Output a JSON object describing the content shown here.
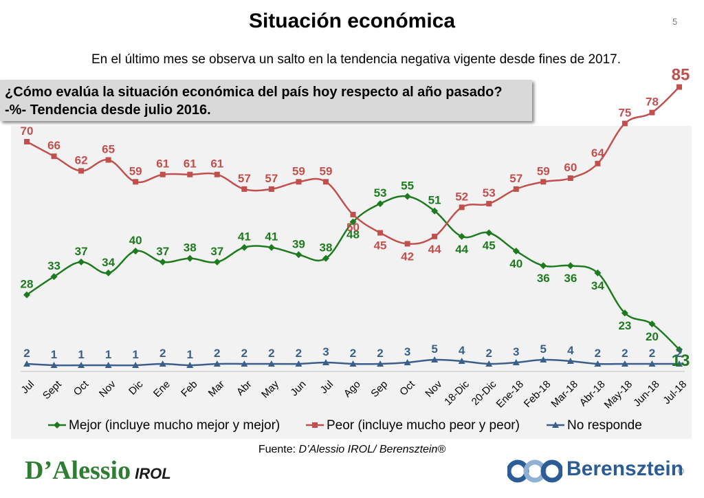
{
  "header": {
    "title": "Situación económica",
    "page_number": "5",
    "subtitle": "En el último mes se observa un salto en la tendencia negativa vigente desde fines de 2017."
  },
  "question": {
    "line1": "¿Cómo evalúa la situación económica del país hoy respecto al año pasado?",
    "line2": "-%- Tendencia desde julio 2016."
  },
  "chart_data": {
    "type": "line",
    "categories": [
      "Jul",
      "Sept",
      "Oct",
      "Nov",
      "Dic",
      "Ene",
      "Feb",
      "Mar",
      "Abr",
      "May",
      "Jun",
      "Jul",
      "Ago",
      "Sep",
      "Oct",
      "Nov",
      "18-Dic",
      "20-Dic",
      "Ene-18",
      "Feb-18",
      "Mar-18",
      "Abr-18",
      "May-18",
      "Jun-18",
      "Jul-18"
    ],
    "ylim": [
      0,
      90
    ],
    "legend_position": "bottom",
    "series": [
      {
        "name": "Mejor (incluye mucho mejor y mejor)",
        "color": "#1e7a1e",
        "marker": "diamond",
        "values": [
          28,
          33,
          37,
          34,
          40,
          37,
          38,
          37,
          41,
          41,
          39,
          38,
          48,
          53,
          55,
          51,
          44,
          45,
          40,
          36,
          36,
          34,
          23,
          20,
          13
        ]
      },
      {
        "name": "Peor (incluye mucho peor y peor)",
        "color": "#c0504d",
        "marker": "square",
        "values": [
          70,
          66,
          62,
          65,
          59,
          61,
          61,
          61,
          57,
          57,
          59,
          59,
          50,
          45,
          42,
          44,
          52,
          53,
          57,
          59,
          60,
          64,
          75,
          78,
          85
        ]
      },
      {
        "name": "No responde",
        "color": "#3b5f8a",
        "marker": "triangle",
        "values": [
          2,
          1,
          1,
          1,
          1,
          2,
          1,
          2,
          2,
          2,
          2,
          3,
          2,
          2,
          3,
          5,
          4,
          2,
          3,
          5,
          4,
          2,
          2,
          2,
          2
        ]
      }
    ]
  },
  "footer": {
    "source_prefix": "Fuente: ",
    "source_text": "D’Alessio IROL/ Berensztein®",
    "logo_left_brand": "D’Alessio",
    "logo_left_sub": "IROL",
    "logo_right_name": "Berensztein",
    "logo_right_reg": "®"
  }
}
